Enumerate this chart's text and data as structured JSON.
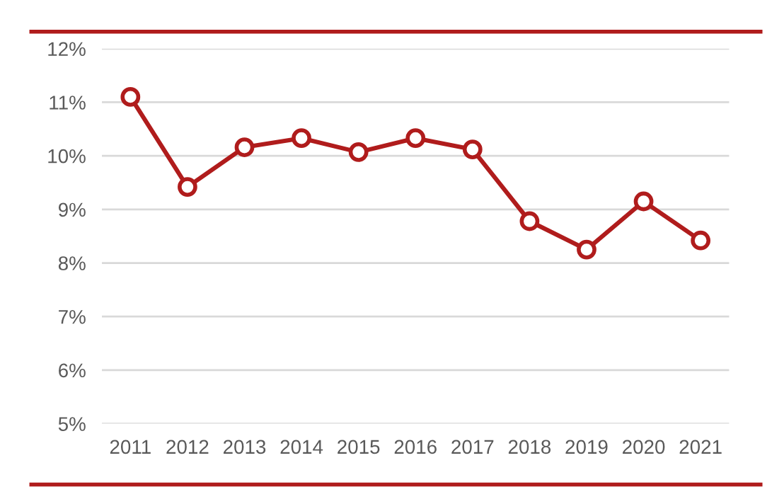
{
  "chart_data": {
    "type": "line",
    "categories": [
      "2011",
      "2012",
      "2013",
      "2014",
      "2015",
      "2016",
      "2017",
      "2018",
      "2019",
      "2020",
      "2021"
    ],
    "series": [
      {
        "color": "#b01c1c",
        "values": [
          11.1,
          9.42,
          10.16,
          10.33,
          10.07,
          10.33,
          10.12,
          8.78,
          8.25,
          9.15,
          8.42
        ]
      }
    ],
    "ylim": [
      5,
      12
    ],
    "yticks": [
      {
        "value": 5,
        "label": "5%"
      },
      {
        "value": 6,
        "label": "6%"
      },
      {
        "value": 7,
        "label": "7%"
      },
      {
        "value": 8,
        "label": "8%"
      },
      {
        "value": 9,
        "label": "9%"
      },
      {
        "value": 10,
        "label": "10%"
      },
      {
        "value": 11,
        "label": "11%"
      },
      {
        "value": 12,
        "label": "12%"
      }
    ],
    "grid": "y",
    "marker": "circle",
    "line_style": "solid"
  }
}
